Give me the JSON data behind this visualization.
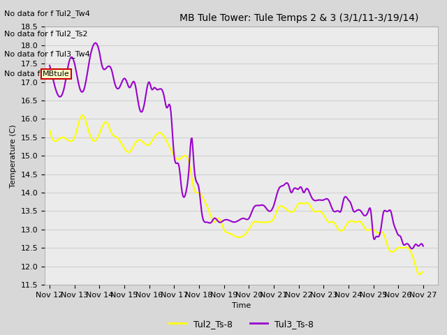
{
  "title": "MB Tule Tower: Tule Temps 2 & 3 (3/1/11-3/19/14)",
  "xlabel": "Time",
  "ylabel": "Temperature (C)",
  "ylim": [
    11.5,
    18.5
  ],
  "yticks": [
    11.5,
    12.0,
    12.5,
    13.0,
    13.5,
    14.0,
    14.5,
    15.0,
    15.5,
    16.0,
    16.5,
    17.0,
    17.5,
    18.0,
    18.5
  ],
  "xtick_labels": [
    "Nov 12",
    "Nov 13",
    "Nov 14",
    "Nov 15",
    "Nov 16",
    "Nov 17",
    "Nov 18",
    "Nov 19",
    "Nov 20",
    "Nov 21",
    "Nov 22",
    "Nov 23",
    "Nov 24",
    "Nov 25",
    "Nov 26",
    "Nov 27"
  ],
  "color_tul2": "#ffff00",
  "color_tul3": "#9900cc",
  "legend_labels": [
    "Tul2_Ts-8",
    "Tul3_Ts-8"
  ],
  "no_data_texts": [
    "No data for f Tul2_Tw4",
    "No data for f Tul2_Ts2",
    "No data for f Tul3_Tw4",
    "No data for f "
  ],
  "tooltip_text": "MBtule",
  "title_fontsize": 10,
  "axis_label_fontsize": 8,
  "tick_fontsize": 8,
  "legend_fontsize": 9,
  "no_data_fontsize": 8,
  "grid_color": "#d0d0d0",
  "bg_color": "#d8d8d8",
  "plot_bg_color": "#ebebeb"
}
